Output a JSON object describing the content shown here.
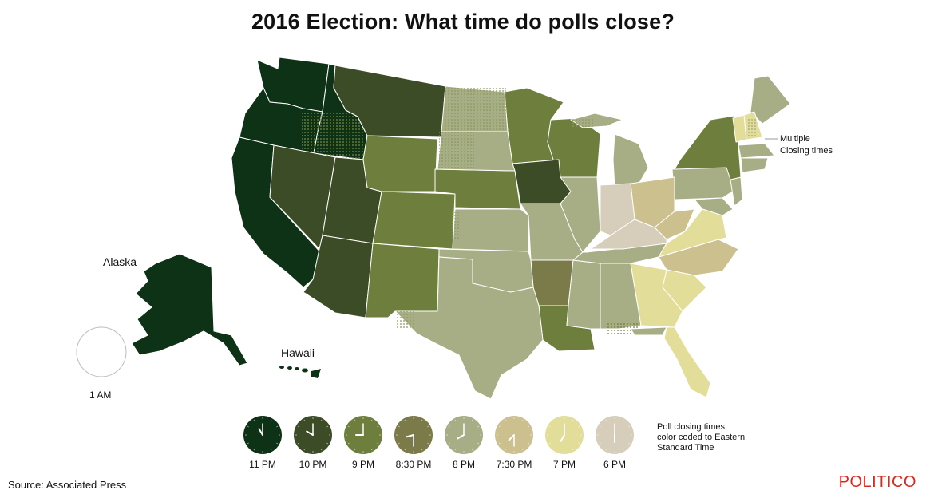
{
  "title": "2016 Election: What time do polls close?",
  "colors": {
    "11pm": "#0e3215",
    "10pm": "#3c4c27",
    "9pm": "#6d7e3d",
    "830pm": "#7b7a49",
    "8pm": "#a7ad84",
    "730pm": "#ccc08f",
    "7pm": "#e2dd98",
    "6pm": "#d6cdbb",
    "border": "#ffffff",
    "brand": "#d9291c"
  },
  "labels": {
    "alaska": "Alaska",
    "hawaii": "Hawaii",
    "one_am": "1 AM",
    "multiple_line1": "Multiple",
    "multiple_line2": "Closing times"
  },
  "legend": {
    "caption_line1": "Poll closing times,",
    "caption_line2": "color coded to Eastern",
    "caption_line3": "Standard Time",
    "items": [
      {
        "label": "11 PM",
        "color": "#0e3215",
        "hour": 11,
        "minute": 0
      },
      {
        "label": "10 PM",
        "color": "#3c4c27",
        "hour": 10,
        "minute": 0
      },
      {
        "label": "9 PM",
        "color": "#6d7e3d",
        "hour": 9,
        "minute": 0
      },
      {
        "label": "8:30 PM",
        "color": "#7b7a49",
        "hour": 8,
        "minute": 30
      },
      {
        "label": "8 PM",
        "color": "#a7ad84",
        "hour": 8,
        "minute": 0
      },
      {
        "label": "7:30 PM",
        "color": "#ccc08f",
        "hour": 7,
        "minute": 30
      },
      {
        "label": "7 PM",
        "color": "#e2dd98",
        "hour": 7,
        "minute": 0
      },
      {
        "label": "6 PM",
        "color": "#d6cdbb",
        "hour": 6,
        "minute": 0
      }
    ]
  },
  "source": "Source: Associated Press",
  "brand": "POLITICO"
}
